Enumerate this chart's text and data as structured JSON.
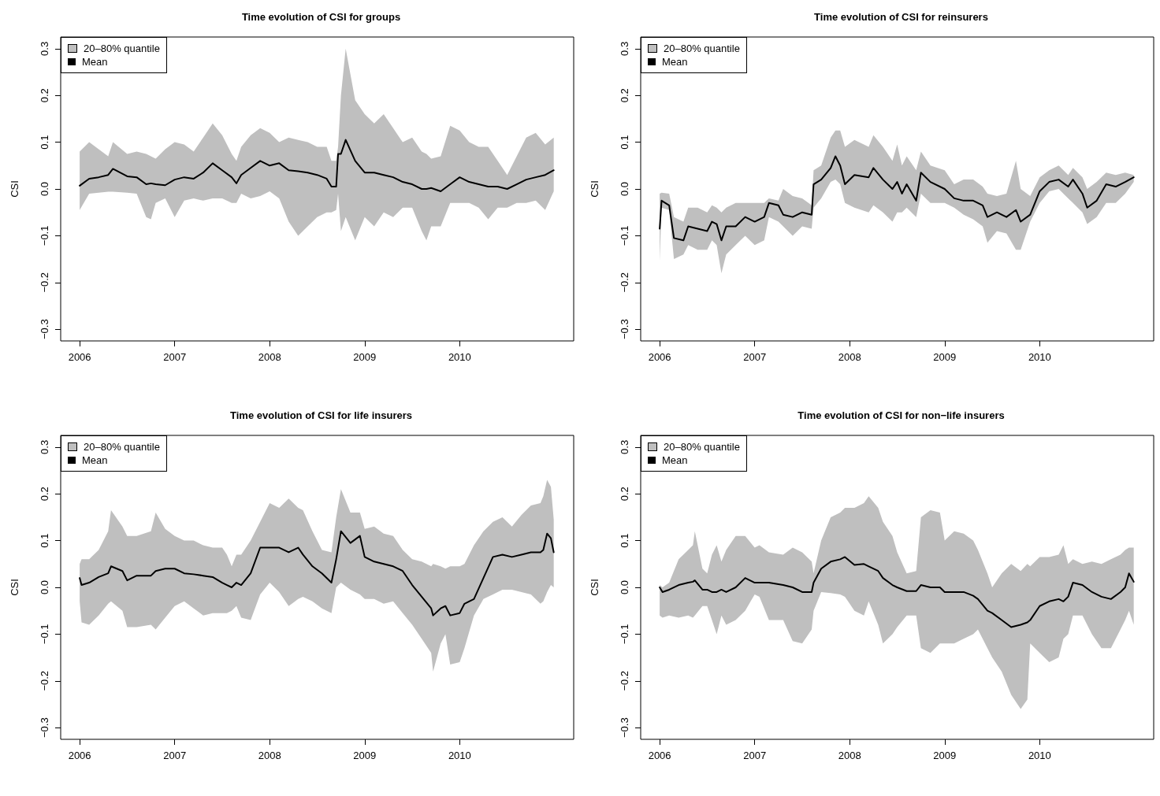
{
  "chart_data": [
    {
      "type": "line",
      "title": "Time evolution of CSI for groups",
      "annotations": [
        "20–80% quantile"
      ],
      "ylabel": "CSI",
      "legend": "top left",
      "xlim": [
        2005.8,
        2011.2
      ],
      "ylim": [
        -0.325,
        0.325
      ],
      "xticks": [
        2006,
        2007,
        2008,
        2009,
        2010
      ],
      "yticks": [
        {
          "value": -0.3,
          "label": "−0.3"
        },
        {
          "value": -0.2,
          "label": "−0.2"
        },
        {
          "value": -0.1,
          "label": "−0.1"
        },
        {
          "value": 0,
          "label": "0.0"
        },
        {
          "value": 0.1,
          "label": "0.1"
        },
        {
          "value": 0.2,
          "label": "0.2"
        },
        {
          "value": 0.3,
          "label": "0.3"
        }
      ],
      "x": [
        2006.0,
        2006.1,
        2006.2,
        2006.3,
        2006.35,
        2006.5,
        2006.6,
        2006.7,
        2006.75,
        2006.8,
        2006.9,
        2007.0,
        2007.1,
        2007.2,
        2007.3,
        2007.4,
        2007.5,
        2007.6,
        2007.65,
        2007.7,
        2007.8,
        2007.9,
        2008.0,
        2008.1,
        2008.2,
        2008.3,
        2008.4,
        2008.5,
        2008.6,
        2008.65,
        2008.7,
        2008.72,
        2008.75,
        2008.8,
        2008.9,
        2009.0,
        2009.1,
        2009.2,
        2009.3,
        2009.4,
        2009.5,
        2009.6,
        2009.65,
        2009.7,
        2009.8,
        2009.9,
        2010.0,
        2010.1,
        2010.2,
        2010.3,
        2010.4,
        2010.5,
        2010.6,
        2010.7,
        2010.8,
        2010.9,
        2010.99
      ],
      "series": [
        {
          "name": "Mean",
          "type": "line",
          "color": "#000000",
          "lower": [
            -0.045,
            -0.01,
            -0.008,
            -0.006,
            -0.006,
            -0.008,
            -0.01,
            -0.06,
            -0.065,
            -0.03,
            -0.02,
            -0.06,
            -0.025,
            -0.02,
            -0.025,
            -0.02,
            -0.02,
            -0.03,
            -0.03,
            -0.01,
            -0.02,
            -0.015,
            -0.005,
            -0.02,
            -0.07,
            -0.1,
            -0.08,
            -0.06,
            -0.05,
            -0.05,
            -0.045,
            -0.01,
            -0.09,
            -0.06,
            -0.11,
            -0.06,
            -0.08,
            -0.05,
            -0.06,
            -0.04,
            -0.04,
            -0.09,
            -0.11,
            -0.08,
            -0.08,
            -0.03,
            -0.03,
            -0.03,
            -0.04,
            -0.065,
            -0.04,
            -0.04,
            -0.03,
            -0.03,
            -0.025,
            -0.045,
            -0.005
          ],
          "upper": [
            0.08,
            0.1,
            0.085,
            0.07,
            0.1,
            0.075,
            0.08,
            0.075,
            0.07,
            0.065,
            0.085,
            0.1,
            0.095,
            0.08,
            0.11,
            0.14,
            0.115,
            0.075,
            0.06,
            0.09,
            0.115,
            0.13,
            0.12,
            0.1,
            0.11,
            0.105,
            0.1,
            0.09,
            0.09,
            0.06,
            0.06,
            0.09,
            0.2,
            0.3,
            0.19,
            0.16,
            0.14,
            0.16,
            0.13,
            0.1,
            0.11,
            0.08,
            0.075,
            0.065,
            0.07,
            0.135,
            0.125,
            0.1,
            0.09,
            0.09,
            0.06,
            0.03,
            0.07,
            0.11,
            0.12,
            0.095,
            0.11
          ],
          "values": [
            0.007,
            0.022,
            0.025,
            0.03,
            0.043,
            0.027,
            0.025,
            0.01,
            0.012,
            0.01,
            0.008,
            0.02,
            0.025,
            0.022,
            0.035,
            0.055,
            0.04,
            0.025,
            0.012,
            0.03,
            0.045,
            0.06,
            0.05,
            0.055,
            0.04,
            0.038,
            0.035,
            0.03,
            0.022,
            0.005,
            0.005,
            0.075,
            0.075,
            0.105,
            0.06,
            0.035,
            0.035,
            0.03,
            0.025,
            0.015,
            0.01,
            0.0,
            0.0,
            0.002,
            -0.005,
            0.01,
            0.025,
            0.015,
            0.01,
            0.005,
            0.005,
            0.0,
            0.01,
            0.02,
            0.025,
            0.03,
            0.04
          ]
        }
      ]
    },
    {
      "type": "line",
      "title": "Time evolution of CSI for reinsurers",
      "annotations": [
        "20–80% quantile"
      ],
      "ylabel": "CSI",
      "legend": "top left",
      "xlim": [
        2005.8,
        2011.2
      ],
      "ylim": [
        -0.325,
        0.325
      ],
      "xticks": [
        2006,
        2007,
        2008,
        2009,
        2010
      ],
      "yticks": [
        {
          "value": -0.3,
          "label": "−0.3"
        },
        {
          "value": -0.2,
          "label": "−0.2"
        },
        {
          "value": -0.1,
          "label": "−0.1"
        },
        {
          "value": 0,
          "label": "0.0"
        },
        {
          "value": 0.1,
          "label": "0.1"
        },
        {
          "value": 0.2,
          "label": "0.2"
        },
        {
          "value": 0.3,
          "label": "0.3"
        }
      ],
      "x": [
        2006.0,
        2006.02,
        2006.1,
        2006.15,
        2006.25,
        2006.3,
        2006.4,
        2006.5,
        2006.55,
        2006.6,
        2006.65,
        2006.7,
        2006.8,
        2006.9,
        2007.0,
        2007.1,
        2007.15,
        2007.25,
        2007.3,
        2007.4,
        2007.5,
        2007.6,
        2007.62,
        2007.7,
        2007.8,
        2007.85,
        2007.9,
        2007.95,
        2008.05,
        2008.2,
        2008.25,
        2008.35,
        2008.45,
        2008.5,
        2008.55,
        2008.6,
        2008.7,
        2008.75,
        2008.85,
        2009.0,
        2009.1,
        2009.2,
        2009.3,
        2009.4,
        2009.45,
        2009.55,
        2009.65,
        2009.75,
        2009.8,
        2009.9,
        2010.0,
        2010.1,
        2010.2,
        2010.3,
        2010.35,
        2010.45,
        2010.5,
        2010.6,
        2010.7,
        2010.8,
        2010.9,
        2010.99
      ],
      "series": [
        {
          "name": "Mean",
          "type": "line",
          "color": "#000000",
          "lower": [
            -0.155,
            -0.04,
            -0.045,
            -0.15,
            -0.14,
            -0.12,
            -0.13,
            -0.13,
            -0.11,
            -0.12,
            -0.18,
            -0.14,
            -0.12,
            -0.1,
            -0.12,
            -0.11,
            -0.06,
            -0.07,
            -0.08,
            -0.1,
            -0.08,
            -0.085,
            -0.04,
            -0.02,
            0.015,
            0.02,
            0.01,
            -0.03,
            -0.04,
            -0.05,
            -0.035,
            -0.05,
            -0.07,
            -0.05,
            -0.05,
            -0.04,
            -0.06,
            -0.01,
            -0.03,
            -0.03,
            -0.04,
            -0.055,
            -0.065,
            -0.08,
            -0.115,
            -0.09,
            -0.095,
            -0.13,
            -0.13,
            -0.07,
            -0.03,
            -0.005,
            0.0,
            -0.02,
            -0.03,
            -0.05,
            -0.075,
            -0.06,
            -0.03,
            -0.03,
            -0.01,
            0.015
          ],
          "upper": [
            -0.01,
            -0.008,
            -0.01,
            -0.06,
            -0.07,
            -0.04,
            -0.04,
            -0.05,
            -0.035,
            -0.04,
            -0.05,
            -0.04,
            -0.03,
            -0.03,
            -0.03,
            -0.03,
            -0.02,
            -0.025,
            0.0,
            -0.015,
            -0.02,
            -0.035,
            0.04,
            0.05,
            0.11,
            0.125,
            0.125,
            0.09,
            0.105,
            0.09,
            0.115,
            0.09,
            0.06,
            0.095,
            0.05,
            0.07,
            0.04,
            0.08,
            0.05,
            0.04,
            0.01,
            0.02,
            0.02,
            0.005,
            -0.01,
            -0.015,
            -0.01,
            0.06,
            0.0,
            -0.015,
            0.025,
            0.04,
            0.05,
            0.03,
            0.045,
            0.025,
            0.0,
            0.015,
            0.035,
            0.03,
            0.035,
            0.03
          ],
          "values": [
            -0.085,
            -0.025,
            -0.035,
            -0.105,
            -0.11,
            -0.08,
            -0.085,
            -0.09,
            -0.07,
            -0.075,
            -0.11,
            -0.08,
            -0.08,
            -0.06,
            -0.07,
            -0.06,
            -0.03,
            -0.035,
            -0.055,
            -0.06,
            -0.05,
            -0.055,
            0.01,
            0.02,
            0.045,
            0.07,
            0.05,
            0.01,
            0.03,
            0.025,
            0.045,
            0.02,
            0.0,
            0.015,
            -0.01,
            0.01,
            -0.025,
            0.035,
            0.015,
            0.0,
            -0.02,
            -0.025,
            -0.025,
            -0.035,
            -0.06,
            -0.05,
            -0.06,
            -0.045,
            -0.07,
            -0.055,
            -0.005,
            0.015,
            0.02,
            0.005,
            0.02,
            -0.01,
            -0.04,
            -0.025,
            0.01,
            0.005,
            0.015,
            0.025
          ]
        }
      ]
    },
    {
      "type": "line",
      "title": "Time evolution of CSI for life insurers",
      "annotations": [
        "20–80% quantile"
      ],
      "ylabel": "CSI",
      "legend": "top left",
      "xlim": [
        2005.8,
        2011.2
      ],
      "ylim": [
        -0.325,
        0.325
      ],
      "xticks": [
        2006,
        2007,
        2008,
        2009,
        2010
      ],
      "yticks": [
        {
          "value": -0.3,
          "label": "−0.3"
        },
        {
          "value": -0.2,
          "label": "−0.2"
        },
        {
          "value": -0.1,
          "label": "−0.1"
        },
        {
          "value": 0,
          "label": "0.0"
        },
        {
          "value": 0.1,
          "label": "0.1"
        },
        {
          "value": 0.2,
          "label": "0.2"
        },
        {
          "value": 0.3,
          "label": "0.3"
        }
      ],
      "x": [
        2006.0,
        2006.02,
        2006.1,
        2006.2,
        2006.3,
        2006.33,
        2006.45,
        2006.5,
        2006.6,
        2006.75,
        2006.8,
        2006.9,
        2007.0,
        2007.1,
        2007.2,
        2007.3,
        2007.4,
        2007.5,
        2007.55,
        2007.6,
        2007.65,
        2007.7,
        2007.8,
        2007.9,
        2008.0,
        2008.1,
        2008.2,
        2008.3,
        2008.35,
        2008.45,
        2008.55,
        2008.65,
        2008.7,
        2008.75,
        2008.85,
        2008.95,
        2009.0,
        2009.1,
        2009.2,
        2009.3,
        2009.4,
        2009.5,
        2009.6,
        2009.7,
        2009.72,
        2009.8,
        2009.85,
        2009.9,
        2010.0,
        2010.05,
        2010.15,
        2010.25,
        2010.35,
        2010.45,
        2010.55,
        2010.65,
        2010.75,
        2010.85,
        2010.88,
        2010.92,
        2010.96,
        2010.99
      ],
      "series": [
        {
          "name": "Mean",
          "type": "line",
          "color": "#000000",
          "lower": [
            -0.03,
            -0.075,
            -0.08,
            -0.06,
            -0.035,
            -0.03,
            -0.05,
            -0.085,
            -0.085,
            -0.08,
            -0.09,
            -0.065,
            -0.04,
            -0.03,
            -0.045,
            -0.06,
            -0.055,
            -0.055,
            -0.055,
            -0.05,
            -0.04,
            -0.065,
            -0.07,
            -0.015,
            0.01,
            -0.01,
            -0.04,
            -0.025,
            -0.02,
            -0.03,
            -0.045,
            -0.055,
            0.0,
            0.01,
            -0.005,
            -0.015,
            -0.025,
            -0.025,
            -0.035,
            -0.03,
            -0.055,
            -0.08,
            -0.11,
            -0.14,
            -0.18,
            -0.12,
            -0.1,
            -0.165,
            -0.16,
            -0.13,
            -0.06,
            -0.025,
            -0.015,
            -0.005,
            -0.005,
            -0.01,
            -0.015,
            -0.035,
            -0.03,
            -0.01,
            0.005,
            0.0
          ],
          "upper": [
            0.05,
            0.06,
            0.06,
            0.08,
            0.12,
            0.165,
            0.13,
            0.11,
            0.11,
            0.12,
            0.16,
            0.125,
            0.11,
            0.1,
            0.1,
            0.09,
            0.085,
            0.085,
            0.07,
            0.045,
            0.07,
            0.07,
            0.1,
            0.14,
            0.18,
            0.17,
            0.19,
            0.17,
            0.165,
            0.12,
            0.08,
            0.075,
            0.15,
            0.21,
            0.16,
            0.16,
            0.125,
            0.13,
            0.115,
            0.11,
            0.08,
            0.06,
            0.055,
            0.045,
            0.05,
            0.045,
            0.04,
            0.045,
            0.045,
            0.05,
            0.09,
            0.12,
            0.14,
            0.15,
            0.13,
            0.155,
            0.175,
            0.18,
            0.195,
            0.23,
            0.215,
            0.145
          ],
          "values": [
            0.02,
            0.005,
            0.01,
            0.022,
            0.03,
            0.045,
            0.035,
            0.015,
            0.025,
            0.025,
            0.035,
            0.04,
            0.04,
            0.03,
            0.028,
            0.025,
            0.022,
            0.01,
            0.005,
            0.0,
            0.01,
            0.005,
            0.03,
            0.085,
            0.085,
            0.085,
            0.075,
            0.085,
            0.07,
            0.045,
            0.03,
            0.01,
            0.06,
            0.12,
            0.095,
            0.11,
            0.065,
            0.055,
            0.05,
            0.045,
            0.035,
            0.005,
            -0.02,
            -0.045,
            -0.06,
            -0.045,
            -0.04,
            -0.06,
            -0.055,
            -0.035,
            -0.025,
            0.02,
            0.065,
            0.07,
            0.065,
            0.07,
            0.075,
            0.075,
            0.08,
            0.115,
            0.105,
            0.075
          ]
        }
      ]
    },
    {
      "type": "line",
      "title": "Time evolution of CSI for non−life insurers",
      "annotations": [
        "20–80% quantile"
      ],
      "ylabel": "CSI",
      "legend": "top left",
      "xlim": [
        2005.8,
        2011.2
      ],
      "ylim": [
        -0.325,
        0.325
      ],
      "xticks": [
        2006,
        2007,
        2008,
        2009,
        2010
      ],
      "yticks": [
        {
          "value": -0.3,
          "label": "−0.3"
        },
        {
          "value": -0.2,
          "label": "−0.2"
        },
        {
          "value": -0.1,
          "label": "−0.1"
        },
        {
          "value": 0,
          "label": "0.0"
        },
        {
          "value": 0.1,
          "label": "0.1"
        },
        {
          "value": 0.2,
          "label": "0.2"
        },
        {
          "value": 0.3,
          "label": "0.3"
        }
      ],
      "x": [
        2006.0,
        2006.03,
        2006.1,
        2006.2,
        2006.3,
        2006.35,
        2006.37,
        2006.45,
        2006.5,
        2006.55,
        2006.6,
        2006.65,
        2006.7,
        2006.8,
        2006.9,
        2007.0,
        2007.05,
        2007.15,
        2007.3,
        2007.4,
        2007.5,
        2007.6,
        2007.62,
        2007.7,
        2007.8,
        2007.9,
        2007.95,
        2008.05,
        2008.15,
        2008.2,
        2008.3,
        2008.35,
        2008.45,
        2008.5,
        2008.6,
        2008.7,
        2008.75,
        2008.85,
        2008.95,
        2009.0,
        2009.1,
        2009.2,
        2009.3,
        2009.35,
        2009.45,
        2009.5,
        2009.6,
        2009.7,
        2009.8,
        2009.87,
        2009.9,
        2010.0,
        2010.1,
        2010.2,
        2010.25,
        2010.3,
        2010.35,
        2010.45,
        2010.55,
        2010.65,
        2010.75,
        2010.85,
        2010.9,
        2010.94,
        2010.99
      ],
      "series": [
        {
          "name": "Mean",
          "type": "line",
          "color": "#000000",
          "lower": [
            -0.06,
            -0.065,
            -0.06,
            -0.065,
            -0.06,
            -0.065,
            -0.06,
            -0.04,
            -0.04,
            -0.07,
            -0.1,
            -0.06,
            -0.08,
            -0.07,
            -0.05,
            -0.015,
            -0.02,
            -0.07,
            -0.07,
            -0.115,
            -0.12,
            -0.09,
            -0.05,
            -0.01,
            -0.012,
            -0.015,
            -0.02,
            -0.05,
            -0.06,
            -0.03,
            -0.08,
            -0.12,
            -0.1,
            -0.085,
            -0.06,
            -0.06,
            -0.13,
            -0.14,
            -0.12,
            -0.12,
            -0.12,
            -0.11,
            -0.1,
            -0.09,
            -0.13,
            -0.15,
            -0.18,
            -0.23,
            -0.26,
            -0.24,
            -0.12,
            -0.14,
            -0.16,
            -0.15,
            -0.11,
            -0.1,
            -0.06,
            -0.06,
            -0.1,
            -0.13,
            -0.13,
            -0.09,
            -0.07,
            -0.05,
            -0.08
          ],
          "upper": [
            0.005,
            0.0,
            0.01,
            0.06,
            0.08,
            0.09,
            0.12,
            0.04,
            0.03,
            0.07,
            0.09,
            0.055,
            0.08,
            0.11,
            0.11,
            0.085,
            0.09,
            0.075,
            0.07,
            0.085,
            0.075,
            0.055,
            0.03,
            0.1,
            0.15,
            0.16,
            0.17,
            0.17,
            0.18,
            0.195,
            0.17,
            0.14,
            0.11,
            0.075,
            0.03,
            0.035,
            0.15,
            0.165,
            0.16,
            0.1,
            0.12,
            0.115,
            0.1,
            0.08,
            0.03,
            0.0,
            0.03,
            0.05,
            0.035,
            0.05,
            0.045,
            0.065,
            0.065,
            0.07,
            0.09,
            0.05,
            0.06,
            0.05,
            0.055,
            0.05,
            0.06,
            0.07,
            0.08,
            0.085,
            0.085
          ],
          "values": [
            0.0,
            -0.01,
            -0.005,
            0.005,
            0.01,
            0.012,
            0.015,
            -0.005,
            -0.005,
            -0.01,
            -0.01,
            -0.005,
            -0.01,
            0.0,
            0.02,
            0.01,
            0.01,
            0.01,
            0.005,
            0.0,
            -0.01,
            -0.01,
            0.01,
            0.04,
            0.055,
            0.06,
            0.065,
            0.048,
            0.05,
            0.045,
            0.035,
            0.02,
            0.005,
            0.0,
            -0.008,
            -0.008,
            0.005,
            0.0,
            0.0,
            -0.01,
            -0.01,
            -0.01,
            -0.018,
            -0.025,
            -0.05,
            -0.055,
            -0.07,
            -0.085,
            -0.08,
            -0.075,
            -0.07,
            -0.04,
            -0.03,
            -0.025,
            -0.03,
            -0.02,
            0.01,
            0.005,
            -0.01,
            -0.02,
            -0.025,
            -0.01,
            0.0,
            0.03,
            0.012
          ]
        }
      ]
    }
  ]
}
